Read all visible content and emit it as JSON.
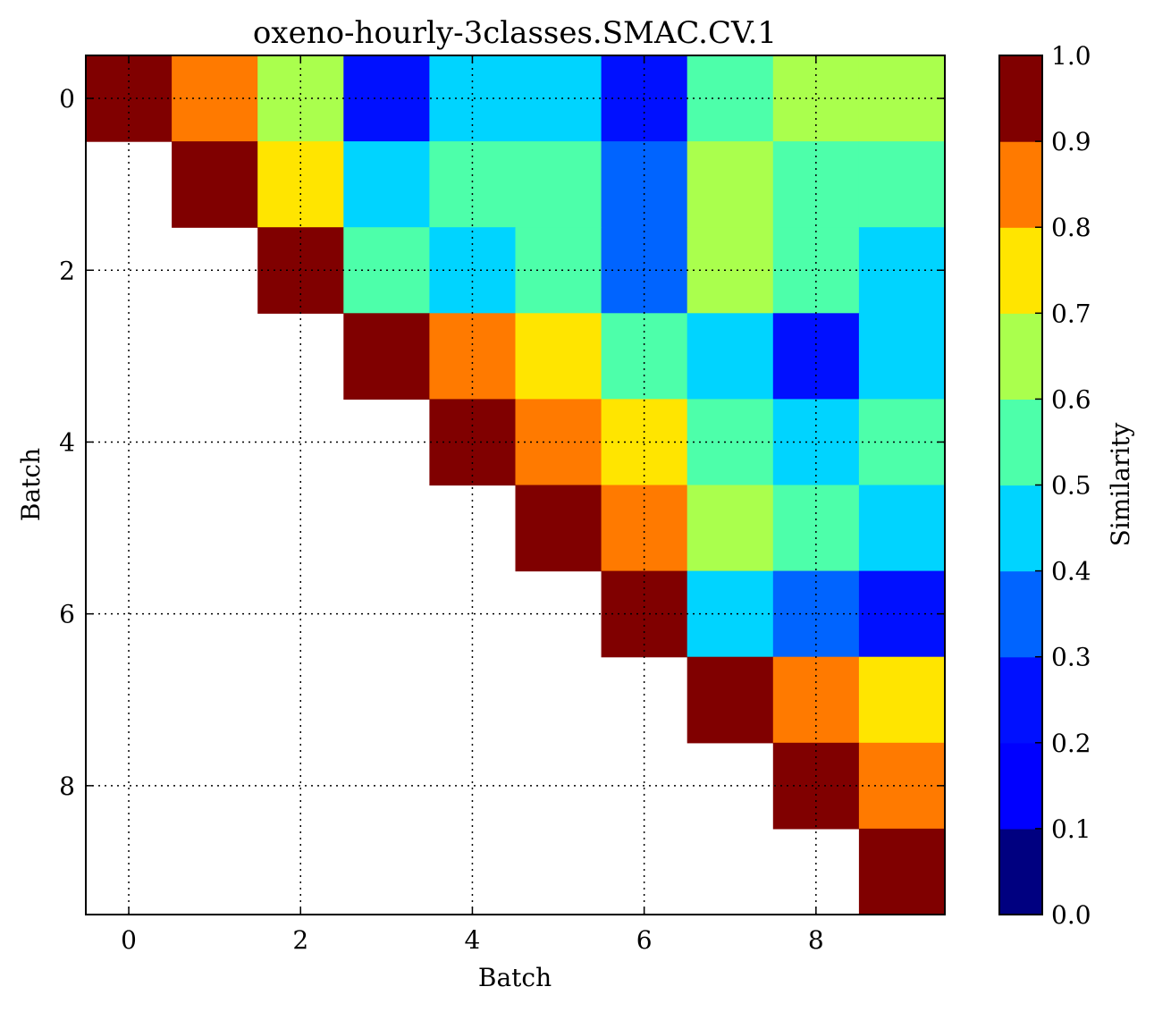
{
  "chart_data": {
    "type": "heatmap",
    "title": "oxeno-hourly-3classes.SMAC.CV.1",
    "xlabel": "Batch",
    "ylabel": "Batch",
    "colorbar_label": "Similarity",
    "rows": [
      0,
      1,
      2,
      3,
      4,
      5,
      6,
      7,
      8,
      9
    ],
    "cols": [
      0,
      1,
      2,
      3,
      4,
      5,
      6,
      7,
      8,
      9
    ],
    "matrix": [
      [
        1.0,
        0.85,
        0.65,
        0.25,
        0.45,
        0.45,
        0.25,
        0.55,
        0.65,
        0.65
      ],
      [
        null,
        1.0,
        0.75,
        0.45,
        0.55,
        0.55,
        0.35,
        0.65,
        0.55,
        0.55
      ],
      [
        null,
        null,
        1.0,
        0.55,
        0.45,
        0.55,
        0.35,
        0.65,
        0.55,
        0.45
      ],
      [
        null,
        null,
        null,
        1.0,
        0.85,
        0.75,
        0.55,
        0.45,
        0.25,
        0.45
      ],
      [
        null,
        null,
        null,
        null,
        1.0,
        0.85,
        0.75,
        0.55,
        0.45,
        0.55
      ],
      [
        null,
        null,
        null,
        null,
        null,
        1.0,
        0.85,
        0.65,
        0.55,
        0.45
      ],
      [
        null,
        null,
        null,
        null,
        null,
        null,
        1.0,
        0.45,
        0.35,
        0.25
      ],
      [
        null,
        null,
        null,
        null,
        null,
        null,
        null,
        1.0,
        0.85,
        0.75
      ],
      [
        null,
        null,
        null,
        null,
        null,
        null,
        null,
        null,
        1.0,
        0.85
      ],
      [
        null,
        null,
        null,
        null,
        null,
        null,
        null,
        null,
        null,
        1.0
      ]
    ],
    "xticks": [
      "0",
      "2",
      "4",
      "6",
      "8"
    ],
    "yticks": [
      "0",
      "2",
      "4",
      "6",
      "8"
    ],
    "colorbar_ticks": [
      "0.0",
      "0.1",
      "0.2",
      "0.3",
      "0.4",
      "0.5",
      "0.6",
      "0.7",
      "0.8",
      "0.9",
      "1.0"
    ],
    "vmin": 0.0,
    "vmax": 1.0,
    "colormap": "jet",
    "colormap_levels": 10,
    "colormap_colors": [
      "#000080",
      "#0000ff",
      "#0010ff",
      "#0064ff",
      "#00d4ff",
      "#4dffaa",
      "#aaff4d",
      "#ffe500",
      "#ff7a00",
      "#ff1a00",
      "#800000"
    ],
    "grid": true
  }
}
